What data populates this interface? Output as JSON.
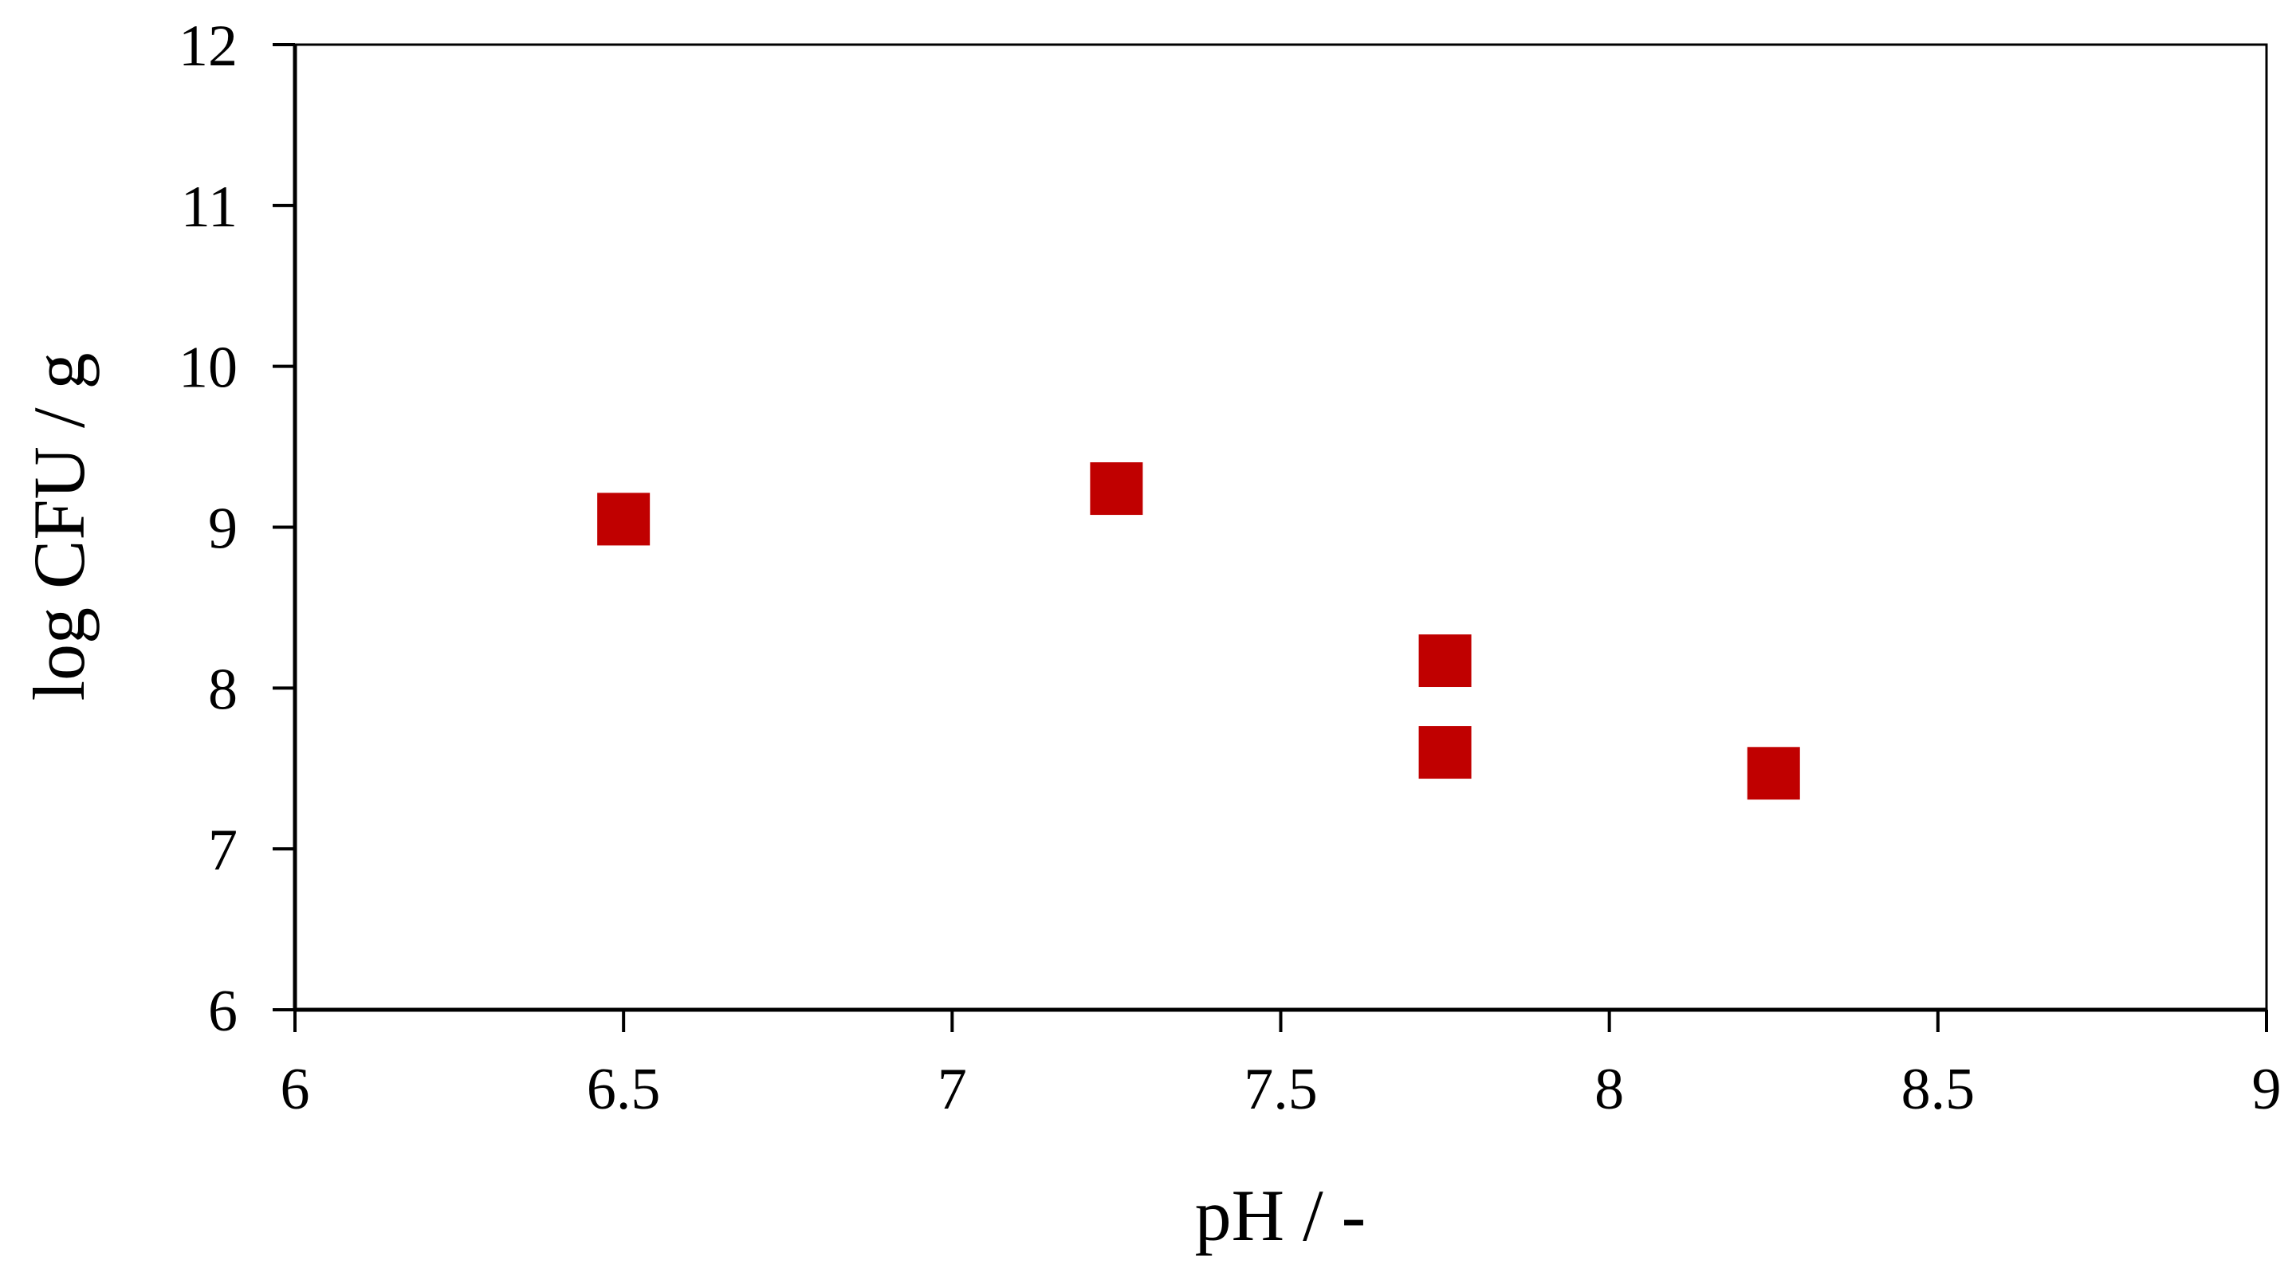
{
  "chart_data": {
    "type": "scatter",
    "title": "",
    "xlabel": "pH / -",
    "ylabel": "log CFU / g",
    "xlim": [
      6,
      9
    ],
    "ylim": [
      6,
      12
    ],
    "x_ticks": [
      6,
      6.5,
      7,
      7.5,
      8,
      8.5,
      9
    ],
    "y_ticks": [
      6,
      7,
      8,
      9,
      10,
      11,
      12
    ],
    "x_tick_labels": [
      "6",
      "6.5",
      "7",
      "7.5",
      "8",
      "8.5",
      "9"
    ],
    "y_tick_labels": [
      "6",
      "7",
      "8",
      "9",
      "10",
      "11",
      "12"
    ],
    "grid": false,
    "legend": "none",
    "marker": "square",
    "marker_color": "#c00000",
    "series": [
      {
        "x": [
          6.5,
          7.25,
          7.75,
          7.75,
          8.25
        ],
        "y": [
          9.05,
          9.24,
          8.17,
          7.6,
          7.47
        ]
      }
    ]
  }
}
